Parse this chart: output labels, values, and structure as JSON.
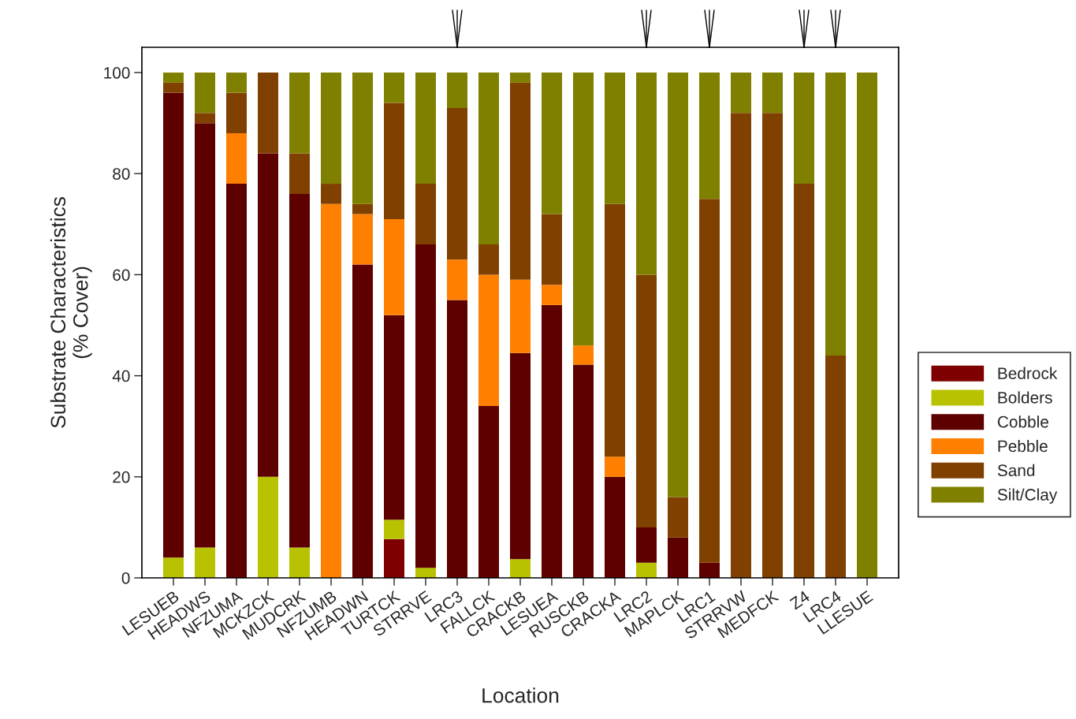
{
  "chart_data": {
    "type": "bar",
    "stacked": true,
    "xlabel": "Location",
    "ylabel": "Substrate Characteristics\n(% Cover)",
    "categories": [
      "LESUEB",
      "HEADWS",
      "NFZUMA",
      "MCKZCK",
      "MUDCRK",
      "NFZUMB",
      "HEADWN",
      "TURTCK",
      "STRRVE",
      "LRC3",
      "FALLCK",
      "CRACKB",
      "LESUEA",
      "RUSCKB",
      "CRACKA",
      "LRC2",
      "MAPLCK",
      "LRC1",
      "STRRVW",
      "MEDFCK",
      "Z4",
      "LRC4",
      "LLESUE"
    ],
    "series": [
      {
        "name": "Bedrock",
        "color": "#7f0000",
        "values": [
          0,
          0,
          0,
          0,
          0,
          0,
          0,
          7.7,
          0,
          0,
          0,
          0,
          0,
          0,
          0,
          0,
          0,
          0,
          0,
          0,
          0,
          0,
          0
        ]
      },
      {
        "name": "Bolders",
        "color": "#b8c200",
        "values": [
          4,
          6,
          0,
          20,
          6,
          0,
          0,
          3.8,
          2,
          0,
          0,
          3.7,
          0,
          0,
          0,
          3,
          0,
          0,
          0,
          0,
          0,
          0,
          0
        ]
      },
      {
        "name": "Cobble",
        "color": "#5f0000",
        "values": [
          92,
          84,
          78,
          64,
          70,
          0,
          62,
          40.5,
          64,
          55,
          34,
          40.8,
          54,
          42.2,
          20,
          7,
          8,
          3,
          0,
          0,
          0,
          0,
          0
        ]
      },
      {
        "name": "Pebble",
        "color": "#ff8000",
        "values": [
          0,
          0,
          10,
          0,
          0,
          74,
          10,
          19,
          0,
          8,
          26,
          14.5,
          4,
          3.8,
          4,
          0,
          0,
          0,
          0,
          0,
          0,
          0,
          0
        ]
      },
      {
        "name": "Sand",
        "color": "#804000",
        "values": [
          2,
          2,
          8,
          16,
          8,
          4,
          2,
          23,
          12,
          30,
          6,
          39,
          14,
          0,
          50,
          50,
          8,
          72,
          92,
          92,
          78,
          44,
          0
        ]
      },
      {
        "name": "Silt/Clay",
        "color": "#808000",
        "values": [
          2,
          8,
          4,
          0,
          16,
          22,
          26,
          6,
          22,
          7,
          34,
          2,
          28,
          54,
          26,
          40,
          84,
          25,
          8,
          8,
          22,
          56,
          100
        ]
      }
    ],
    "ylim": [
      0,
      105
    ],
    "yticks": [
      0,
      20,
      40,
      60,
      80,
      100
    ],
    "grid": false,
    "legend": "right"
  }
}
